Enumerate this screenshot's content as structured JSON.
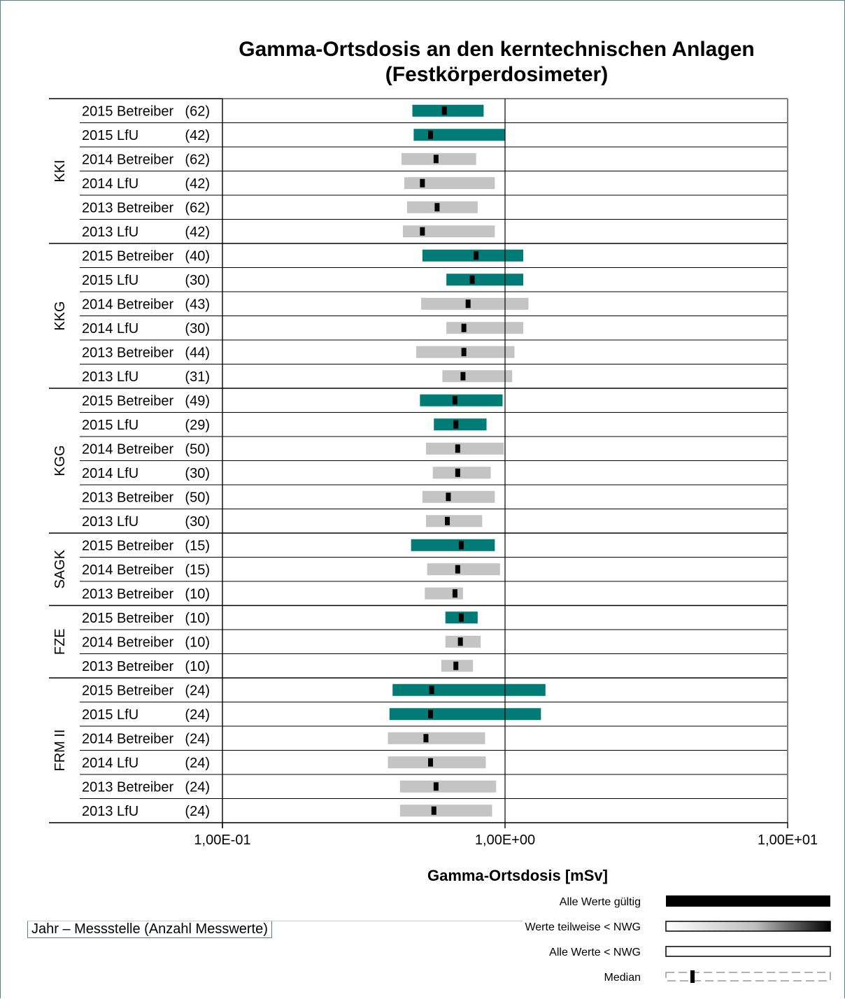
{
  "chart_data": {
    "type": "bar",
    "subtype": "horizontal-range",
    "title_line1": "Gamma-Ortsdosis  an den kerntechnischen Anlagen",
    "title_line2": "(Festkörperdosimeter)",
    "xlabel": "Gamma-Ortsdosis [mSv]",
    "xscale": "log",
    "xlim": [
      0.1,
      10
    ],
    "xticks": [
      0.1,
      1,
      10
    ],
    "xtick_labels": [
      "1,00E-01",
      "1,00E+00",
      "1,00E+01"
    ],
    "grid": "horizontal row lines and vertical line at 1,00E+00",
    "caption": "Jahr – Messstelle (Anzahl Messwerte)",
    "colors": {
      "all_valid": "#007b76",
      "partial_below_nwg": "#c4c4c4",
      "median": "#000000",
      "axis": "#000000"
    },
    "legend": {
      "position": "bottom-right",
      "items": [
        {
          "label": "Alle Werte gültig",
          "style": "solid"
        },
        {
          "label": "Werte teilweise < NWG",
          "style": "gradient"
        },
        {
          "label": "Alle Werte < NWG",
          "style": "empty"
        },
        {
          "label": "Median",
          "style": "median"
        }
      ]
    },
    "groups": [
      {
        "name": "KKI",
        "rows": [
          {
            "label": "2015 Betreiber",
            "count": "(62)",
            "min": 0.47,
            "max": 0.84,
            "median": 0.61,
            "valid": true
          },
          {
            "label": "2015 LfU",
            "count": "(42)",
            "min": 0.475,
            "max": 1.0,
            "median": 0.545,
            "valid": true
          },
          {
            "label": "2014 Betreiber",
            "count": "(62)",
            "min": 0.43,
            "max": 0.79,
            "median": 0.57,
            "valid": false
          },
          {
            "label": "2014 LfU",
            "count": "(42)",
            "min": 0.44,
            "max": 0.92,
            "median": 0.51,
            "valid": false
          },
          {
            "label": "2013 Betreiber",
            "count": "(62)",
            "min": 0.45,
            "max": 0.8,
            "median": 0.575,
            "valid": false
          },
          {
            "label": "2013 LfU",
            "count": "(42)",
            "min": 0.435,
            "max": 0.92,
            "median": 0.51,
            "valid": false
          }
        ]
      },
      {
        "name": "KKG",
        "rows": [
          {
            "label": "2015 Betreiber",
            "count": "(40)",
            "min": 0.51,
            "max": 1.16,
            "median": 0.79,
            "valid": true
          },
          {
            "label": "2015 LfU",
            "count": "(30)",
            "min": 0.62,
            "max": 1.16,
            "median": 0.765,
            "valid": true
          },
          {
            "label": "2014 Betreiber",
            "count": "(43)",
            "min": 0.505,
            "max": 1.21,
            "median": 0.74,
            "valid": false
          },
          {
            "label": "2014 LfU",
            "count": "(30)",
            "min": 0.62,
            "max": 1.16,
            "median": 0.715,
            "valid": false
          },
          {
            "label": "2013 Betreiber",
            "count": "(44)",
            "min": 0.485,
            "max": 1.08,
            "median": 0.715,
            "valid": false
          },
          {
            "label": "2013 LfU",
            "count": "(31)",
            "min": 0.6,
            "max": 1.06,
            "median": 0.71,
            "valid": false
          }
        ]
      },
      {
        "name": "KGG",
        "rows": [
          {
            "label": "2015 Betreiber",
            "count": "(49)",
            "min": 0.5,
            "max": 0.98,
            "median": 0.665,
            "valid": true
          },
          {
            "label": "2015 LfU",
            "count": "(29)",
            "min": 0.56,
            "max": 0.86,
            "median": 0.67,
            "valid": true
          },
          {
            "label": "2014 Betreiber",
            "count": "(50)",
            "min": 0.525,
            "max": 0.99,
            "median": 0.68,
            "valid": false
          },
          {
            "label": "2014 LfU",
            "count": "(30)",
            "min": 0.555,
            "max": 0.89,
            "median": 0.68,
            "valid": false
          },
          {
            "label": "2013 Betreiber",
            "count": "(50)",
            "min": 0.51,
            "max": 0.92,
            "median": 0.63,
            "valid": false
          },
          {
            "label": "2013 LfU",
            "count": "(30)",
            "min": 0.525,
            "max": 0.83,
            "median": 0.625,
            "valid": false
          }
        ]
      },
      {
        "name": "SAGK",
        "rows": [
          {
            "label": "2015 Betreiber",
            "count": "(15)",
            "min": 0.465,
            "max": 0.92,
            "median": 0.7,
            "valid": true
          },
          {
            "label": "2014 Betreiber",
            "count": "(15)",
            "min": 0.53,
            "max": 0.96,
            "median": 0.68,
            "valid": false
          },
          {
            "label": "2013 Betreiber",
            "count": "(10)",
            "min": 0.52,
            "max": 0.71,
            "median": 0.665,
            "valid": false
          }
        ]
      },
      {
        "name": "FZE",
        "rows": [
          {
            "label": "2015 Betreiber",
            "count": "(10)",
            "min": 0.615,
            "max": 0.8,
            "median": 0.7,
            "valid": true
          },
          {
            "label": "2014 Betreiber",
            "count": "(10)",
            "min": 0.615,
            "max": 0.82,
            "median": 0.695,
            "valid": false
          },
          {
            "label": "2013 Betreiber",
            "count": "(10)",
            "min": 0.595,
            "max": 0.77,
            "median": 0.67,
            "valid": false
          }
        ]
      },
      {
        "name": "FRM II",
        "rows": [
          {
            "label": "2015 Betreiber",
            "count": "(24)",
            "min": 0.4,
            "max": 1.39,
            "median": 0.55,
            "valid": true
          },
          {
            "label": "2015 LfU",
            "count": "(24)",
            "min": 0.39,
            "max": 1.34,
            "median": 0.545,
            "valid": true
          },
          {
            "label": "2014 Betreiber",
            "count": "(24)",
            "min": 0.385,
            "max": 0.85,
            "median": 0.525,
            "valid": false
          },
          {
            "label": "2014 LfU",
            "count": "(24)",
            "min": 0.385,
            "max": 0.855,
            "median": 0.545,
            "valid": false
          },
          {
            "label": "2013 Betreiber",
            "count": "(24)",
            "min": 0.425,
            "max": 0.93,
            "median": 0.57,
            "valid": false
          },
          {
            "label": "2013 LfU",
            "count": "(24)",
            "min": 0.425,
            "max": 0.9,
            "median": 0.56,
            "valid": false
          }
        ]
      }
    ]
  }
}
